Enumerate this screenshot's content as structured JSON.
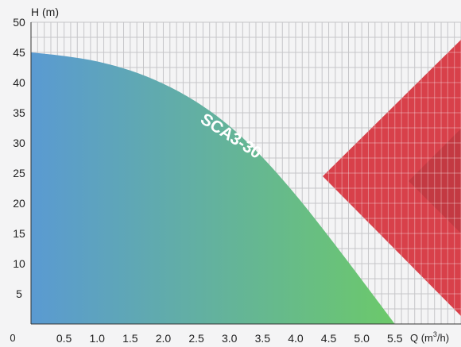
{
  "chart_data": {
    "type": "area",
    "ylabel": "H (m)",
    "xlabel_main": "Q (m",
    "xlabel_sup": "3",
    "xlabel_end": "/h)",
    "xlim": [
      0,
      6.5
    ],
    "ylim": [
      0,
      50
    ],
    "x_ticks": [
      "0.5",
      "1.0",
      "1.5",
      "2.0",
      "2.5",
      "3.0",
      "3.5",
      "4.0",
      "4.5",
      "5.0",
      "5.5"
    ],
    "x_tick_values": [
      0.5,
      1.0,
      1.5,
      2.0,
      2.5,
      3.0,
      3.5,
      4.0,
      4.5,
      5.0,
      5.5
    ],
    "y_ticks": [
      "5",
      "10",
      "15",
      "20",
      "25",
      "30",
      "35",
      "40",
      "45",
      "50"
    ],
    "y_tick_values": [
      5,
      10,
      15,
      20,
      25,
      30,
      35,
      40,
      45,
      50
    ],
    "origin_label": "0",
    "grid": true,
    "series": [
      {
        "name": "SCA3-30",
        "x": [
          0,
          0.5,
          1.0,
          1.5,
          2.0,
          2.5,
          3.0,
          3.5,
          4.0,
          4.5,
          5.0,
          5.5
        ],
        "y": [
          45,
          44.4,
          43.5,
          42.0,
          39.8,
          36.8,
          32.8,
          27.6,
          21.4,
          14.5,
          7.3,
          0
        ],
        "gradient": [
          "#5a9ad2",
          "#6cc96a"
        ]
      }
    ],
    "decoration_color": "#d8404a"
  }
}
